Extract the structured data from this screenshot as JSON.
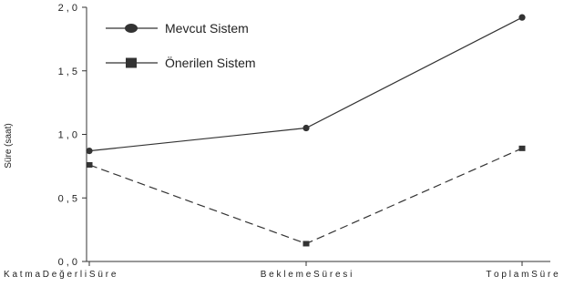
{
  "chart_data": {
    "type": "line",
    "categories": [
      "K a t m a  D e ğ e r l i  S ü r e",
      "B e k l e m e  S ü r e s i",
      "T o p l a m  S ü r e"
    ],
    "series": [
      {
        "name": "Mevcut Sistem",
        "values": [
          0.87,
          1.05,
          1.92
        ],
        "marker": "circle",
        "line_style": "solid"
      },
      {
        "name": "Önerilen Sistem",
        "values": [
          0.76,
          0.14,
          0.89
        ],
        "marker": "square",
        "line_style": "dashed"
      }
    ],
    "ylabel": "Süre (saat)",
    "xlabel": "",
    "title": "",
    "ylim": [
      0,
      2.0
    ],
    "yticks": [
      {
        "value": 0.0,
        "label": "0 , 0"
      },
      {
        "value": 0.5,
        "label": "0 , 5"
      },
      {
        "value": 1.0,
        "label": "1 , 0"
      },
      {
        "value": 1.5,
        "label": "1 , 5"
      },
      {
        "value": 2.0,
        "label": "2 , 0"
      }
    ],
    "grid": false,
    "legend_position": "top-left",
    "colors": {
      "line": "#333333",
      "axis": "#333333"
    }
  }
}
